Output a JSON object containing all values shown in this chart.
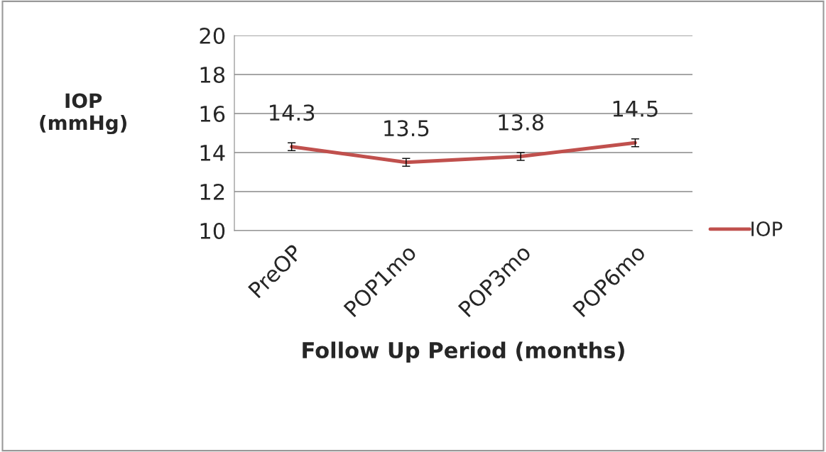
{
  "chart_data": {
    "type": "line",
    "xlabel": "Follow Up Period (months)",
    "ylabel": "IOP\n(mmHg)",
    "categories": [
      "PreOP",
      "POP1mo",
      "POP3mo",
      "POP6mo"
    ],
    "series": [
      {
        "name": "IOP",
        "color": "#c0504d",
        "values": [
          14.3,
          13.5,
          13.8,
          14.5
        ],
        "errors": [
          0.2,
          0.2,
          0.2,
          0.2
        ]
      }
    ],
    "data_labels": true,
    "ylim": [
      10,
      20
    ],
    "yticks": [
      10,
      12,
      14,
      16,
      18,
      20
    ],
    "grid": "y",
    "legend": "right",
    "marker": "none"
  }
}
